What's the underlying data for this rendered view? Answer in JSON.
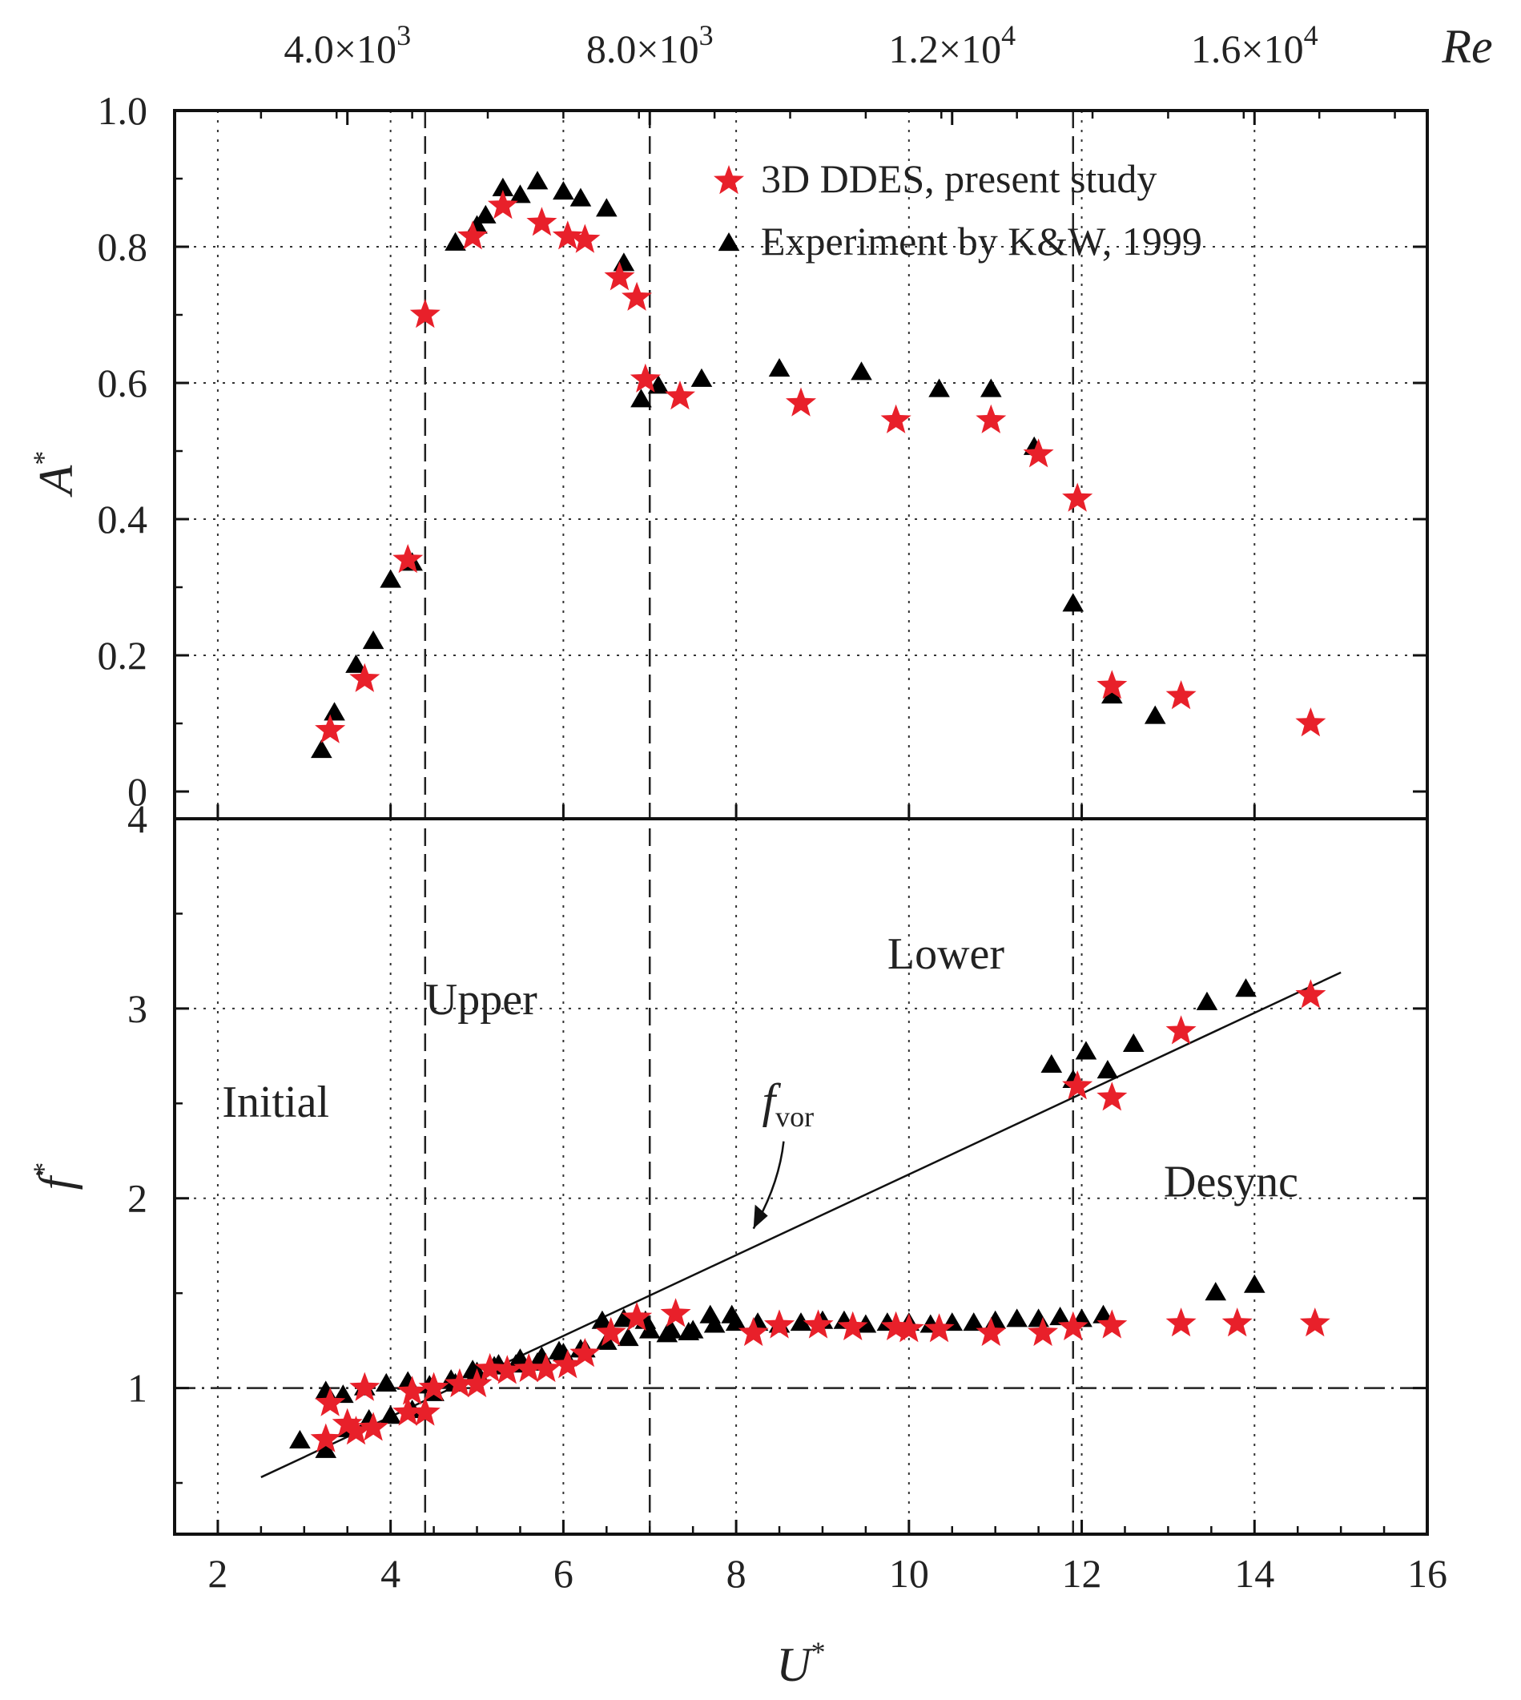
{
  "chart_data": {
    "type": "scatter",
    "colors": {
      "dd": "#e8202a",
      "exp": "#000000",
      "axis": "#111111",
      "grid": "#333333"
    },
    "x_axis": {
      "label": "U",
      "label_sup": "*",
      "range": [
        1.5,
        16
      ],
      "ticks": [
        2,
        4,
        6,
        8,
        10,
        12,
        14,
        16
      ],
      "tick_labels": [
        "2",
        "4",
        "6",
        "8",
        "10",
        "12",
        "14",
        "16"
      ],
      "grid_at": [
        2,
        4,
        6,
        8,
        10,
        12,
        14
      ]
    },
    "top_axis": {
      "label": "Re",
      "ticks": [
        {
          "u": 3.5,
          "base": "4.0×10",
          "exp": "3"
        },
        {
          "u": 7.0,
          "base": "8.0×10",
          "exp": "3"
        },
        {
          "u": 10.5,
          "base": "1.2×10",
          "exp": "4"
        },
        {
          "u": 14.0,
          "base": "1.6×10",
          "exp": "4"
        }
      ]
    },
    "regime_boundaries": [
      4.4,
      7.0,
      11.9
    ],
    "panels": [
      {
        "id": "amplitude",
        "ylabel": "A",
        "ylabel_sup": "*",
        "ylim": [
          -0.04,
          1.0
        ],
        "yticks": [
          0,
          0.2,
          0.4,
          0.6,
          0.8,
          1.0
        ],
        "ytick_labels": [
          "0",
          "0.2",
          "0.4",
          "0.6",
          "0.8",
          "1.0"
        ],
        "ygrid": [
          0.2,
          0.4,
          0.6,
          0.8
        ],
        "legend": {
          "position": "top-right",
          "entries": [
            {
              "label": "3D DDES, present study",
              "marker": "star",
              "series": "dd"
            },
            {
              "label": "Experiment by K&W, 1999",
              "marker": "triangle",
              "series": "exp"
            }
          ]
        },
        "series": [
          {
            "name": "3D DDES, present study",
            "key": "dd",
            "marker": "star",
            "x": [
              3.3,
              3.7,
              4.2,
              4.4,
              4.95,
              5.3,
              5.75,
              6.05,
              6.25,
              6.65,
              6.85,
              6.95,
              7.35,
              8.75,
              9.85,
              10.95,
              11.5,
              11.95,
              12.35,
              13.15,
              14.65
            ],
            "y": [
              0.09,
              0.165,
              0.34,
              0.7,
              0.815,
              0.86,
              0.835,
              0.815,
              0.81,
              0.755,
              0.725,
              0.605,
              0.58,
              0.57,
              0.545,
              0.545,
              0.495,
              0.43,
              0.155,
              0.14,
              0.1
            ]
          },
          {
            "name": "Experiment by K&W, 1999",
            "key": "exp",
            "marker": "triangle",
            "x": [
              3.2,
              3.35,
              3.6,
              3.8,
              4.0,
              4.25,
              4.75,
              5.0,
              5.1,
              5.3,
              5.5,
              5.7,
              6.0,
              6.2,
              6.5,
              6.7,
              6.9,
              7.1,
              7.6,
              8.5,
              9.45,
              10.35,
              10.95,
              11.45,
              11.9,
              12.35,
              12.85
            ],
            "y": [
              0.06,
              0.115,
              0.185,
              0.22,
              0.31,
              0.335,
              0.805,
              0.83,
              0.845,
              0.885,
              0.875,
              0.895,
              0.88,
              0.87,
              0.855,
              0.775,
              0.575,
              0.595,
              0.605,
              0.62,
              0.615,
              0.59,
              0.59,
              0.505,
              0.275,
              0.14,
              0.11
            ]
          }
        ]
      },
      {
        "id": "frequency",
        "ylabel": "f",
        "ylabel_sup": "*",
        "ylim": [
          0.23,
          4.0
        ],
        "yticks": [
          1,
          2,
          3,
          4
        ],
        "ytick_labels": [
          "1",
          "2",
          "3",
          "4"
        ],
        "ygrid": [
          2,
          3
        ],
        "reference_line": {
          "y": 1.0,
          "style": "dash-dot"
        },
        "fvor_line": {
          "x": [
            2.5,
            15.0
          ],
          "y": [
            0.53,
            3.19
          ],
          "label": "f",
          "label_sub": "vor",
          "label_at": [
            8.3,
            2.43
          ],
          "arrow_to": [
            8.2,
            1.84
          ]
        },
        "region_labels": [
          {
            "text": "Initial",
            "at": [
              2.05,
              2.43
            ]
          },
          {
            "text": "Upper",
            "at": [
              4.4,
              2.97
            ]
          },
          {
            "text": "Lower",
            "at": [
              9.75,
              3.21
            ]
          },
          {
            "text": "Desync",
            "at": [
              12.95,
              2.01
            ]
          }
        ],
        "series": [
          {
            "name": "3D DDES, present study",
            "key": "dd",
            "marker": "star",
            "x": [
              3.25,
              3.3,
              3.5,
              3.6,
              3.7,
              3.8,
              4.2,
              4.25,
              4.4,
              4.5,
              4.8,
              5.0,
              5.15,
              5.35,
              5.6,
              5.8,
              6.05,
              6.25,
              6.55,
              6.85,
              7.3,
              8.2,
              8.5,
              8.95,
              9.35,
              9.85,
              10.0,
              10.35,
              10.95,
              11.55,
              11.9,
              12.35,
              13.15,
              13.8,
              14.7,
              14.65,
              11.95,
              12.35,
              13.15
            ],
            "y": [
              0.73,
              0.92,
              0.81,
              0.77,
              1.0,
              0.79,
              0.87,
              0.98,
              0.87,
              1.0,
              1.02,
              1.02,
              1.1,
              1.09,
              1.1,
              1.1,
              1.12,
              1.18,
              1.29,
              1.37,
              1.39,
              1.29,
              1.33,
              1.33,
              1.32,
              1.32,
              1.31,
              1.31,
              1.29,
              1.29,
              1.32,
              1.33,
              1.34,
              1.34,
              1.34,
              3.07,
              2.59,
              2.53,
              2.88
            ]
          },
          {
            "name": "Experiment by K&W, 1999",
            "key": "exp",
            "marker": "triangle",
            "x": [
              2.95,
              3.25,
              3.5,
              3.75,
              4.0,
              4.25,
              4.5,
              4.75,
              5.0,
              5.25,
              5.5,
              5.75,
              6.0,
              6.25,
              6.5,
              6.75,
              7.0,
              7.25,
              7.5,
              7.75,
              8.0,
              8.25,
              8.5,
              8.75,
              9.0,
              9.25,
              9.5,
              9.75,
              10.0,
              10.25,
              10.5,
              10.75,
              11.0,
              11.25,
              11.5,
              11.75,
              12.0,
              12.25,
              3.25,
              3.45,
              3.7,
              3.95,
              4.2,
              4.45,
              4.7,
              4.95,
              5.2,
              5.45,
              5.7,
              5.95,
              6.2,
              6.45,
              6.7,
              6.95,
              7.2,
              7.45,
              7.7,
              7.95,
              11.65,
              11.9,
              12.05,
              12.3,
              12.6,
              13.45,
              13.9,
              13.55,
              14.0
            ],
            "y": [
              0.72,
              0.67,
              0.78,
              0.83,
              0.85,
              0.88,
              0.97,
              1.02,
              1.08,
              1.12,
              1.15,
              1.16,
              1.18,
              1.2,
              1.24,
              1.26,
              1.3,
              1.3,
              1.3,
              1.33,
              1.34,
              1.34,
              1.33,
              1.34,
              1.35,
              1.35,
              1.33,
              1.34,
              1.34,
              1.33,
              1.34,
              1.34,
              1.35,
              1.36,
              1.36,
              1.37,
              1.36,
              1.38,
              0.98,
              0.96,
              1.0,
              1.02,
              1.03,
              1.01,
              1.04,
              1.09,
              1.11,
              1.12,
              1.13,
              1.19,
              1.2,
              1.35,
              1.36,
              1.35,
              1.28,
              1.29,
              1.38,
              1.38,
              2.7,
              2.62,
              2.77,
              2.67,
              2.81,
              3.03,
              3.1,
              1.5,
              1.54
            ]
          }
        ]
      }
    ]
  }
}
